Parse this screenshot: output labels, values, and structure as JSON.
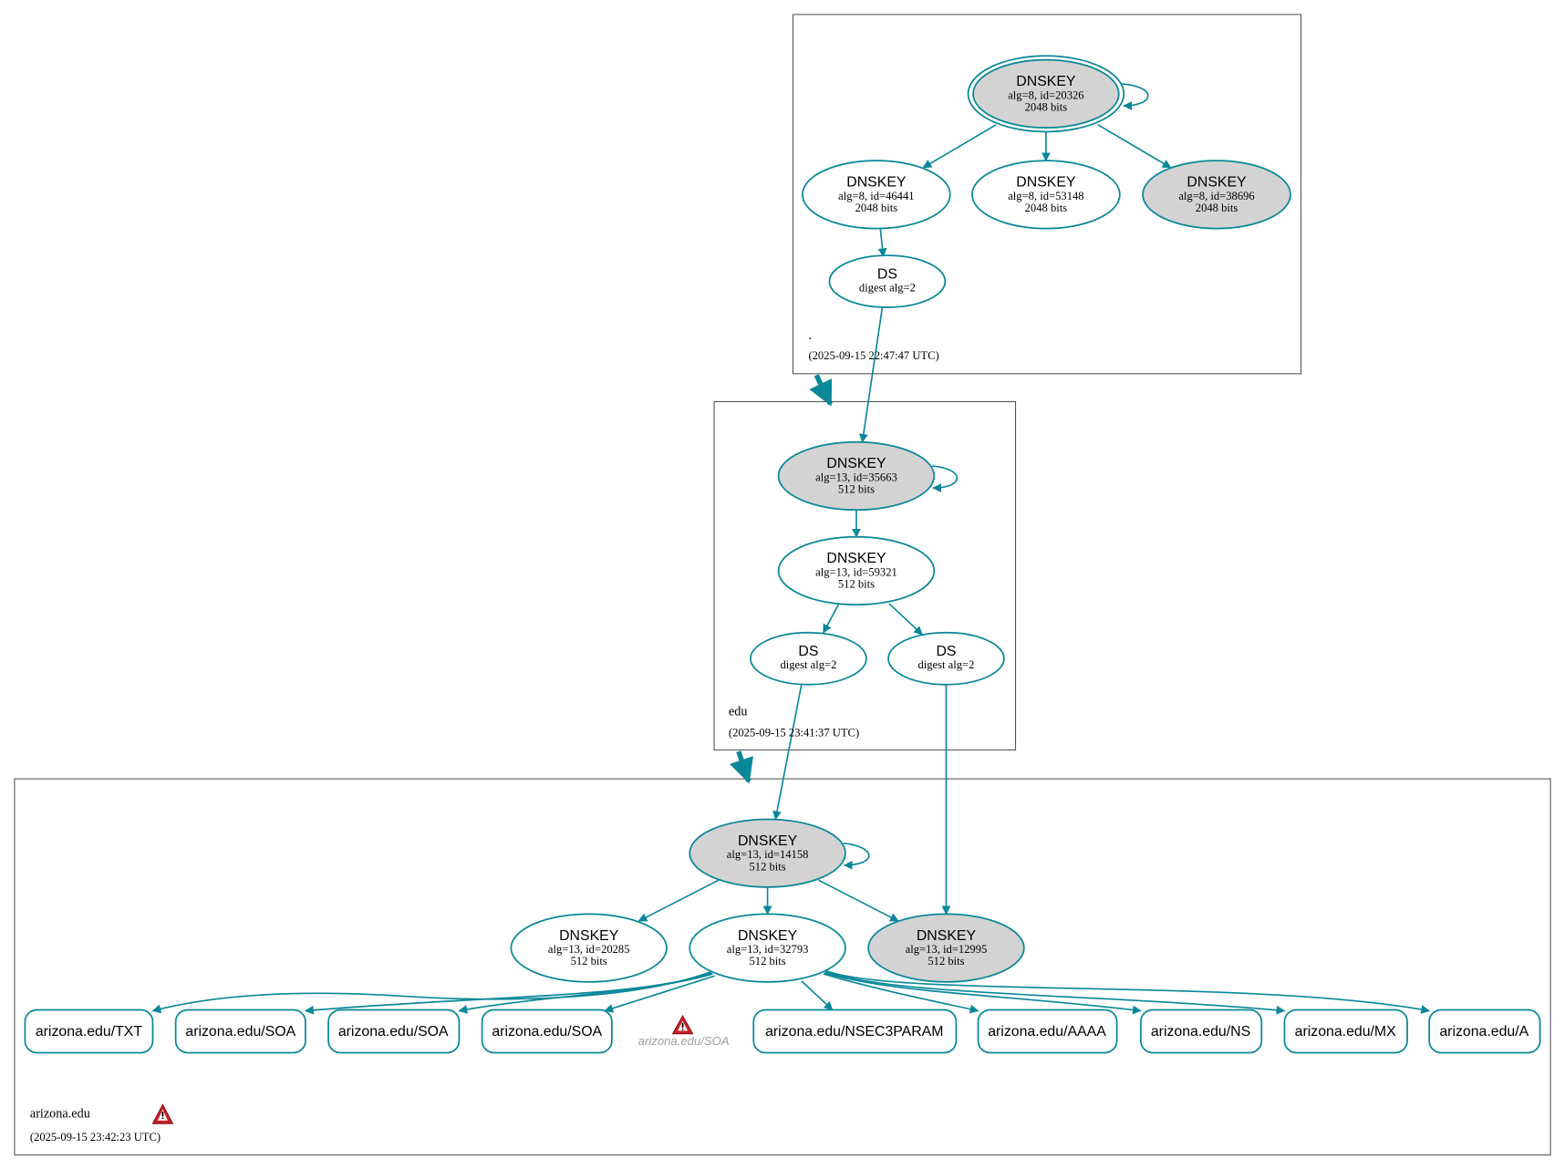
{
  "colors": {
    "edge": "#0a8799",
    "sep_fill": "#d3d3d3",
    "warning": "#c8202a"
  },
  "zones": {
    "root": {
      "name": ".",
      "date": "(2025-09-15 22:47:47 UTC)"
    },
    "edu": {
      "name": "edu",
      "date": "(2025-09-15 23:41:37 UTC)"
    },
    "arizona": {
      "name": "arizona.edu",
      "date": "(2025-09-15 23:42:23 UTC)",
      "warning_icon": "warning-triangle-icon"
    }
  },
  "nodes": {
    "root_ksk": {
      "type": "DNSKEY",
      "line1": "alg=8, id=20326",
      "line2": "2048 bits"
    },
    "root_46441": {
      "type": "DNSKEY",
      "line1": "alg=8, id=46441",
      "line2": "2048 bits"
    },
    "root_53148": {
      "type": "DNSKEY",
      "line1": "alg=8, id=53148",
      "line2": "2048 bits"
    },
    "root_38696": {
      "type": "DNSKEY",
      "line1": "alg=8, id=38696",
      "line2": "2048 bits"
    },
    "root_ds": {
      "type": "DS",
      "line1": "digest alg=2"
    },
    "edu_35663": {
      "type": "DNSKEY",
      "line1": "alg=13, id=35663",
      "line2": "512 bits"
    },
    "edu_59321": {
      "type": "DNSKEY",
      "line1": "alg=13, id=59321",
      "line2": "512 bits"
    },
    "edu_ds1": {
      "type": "DS",
      "line1": "digest alg=2"
    },
    "edu_ds2": {
      "type": "DS",
      "line1": "digest alg=2"
    },
    "az_14158": {
      "type": "DNSKEY",
      "line1": "alg=13, id=14158",
      "line2": "512 bits"
    },
    "az_20285": {
      "type": "DNSKEY",
      "line1": "alg=13, id=20285",
      "line2": "512 bits"
    },
    "az_32793": {
      "type": "DNSKEY",
      "line1": "alg=13, id=32793",
      "line2": "512 bits"
    },
    "az_12995": {
      "type": "DNSKEY",
      "line1": "alg=13, id=12995",
      "line2": "512 bits"
    }
  },
  "records": [
    "arizona.edu/TXT",
    "arizona.edu/SOA",
    "arizona.edu/SOA",
    "arizona.edu/SOA",
    "arizona.edu/NSEC3PARAM",
    "arizona.edu/AAAA",
    "arizona.edu/NS",
    "arizona.edu/MX",
    "arizona.edu/A"
  ],
  "warning_record": {
    "label": "arizona.edu/SOA",
    "icon": "warning-triangle-icon"
  }
}
